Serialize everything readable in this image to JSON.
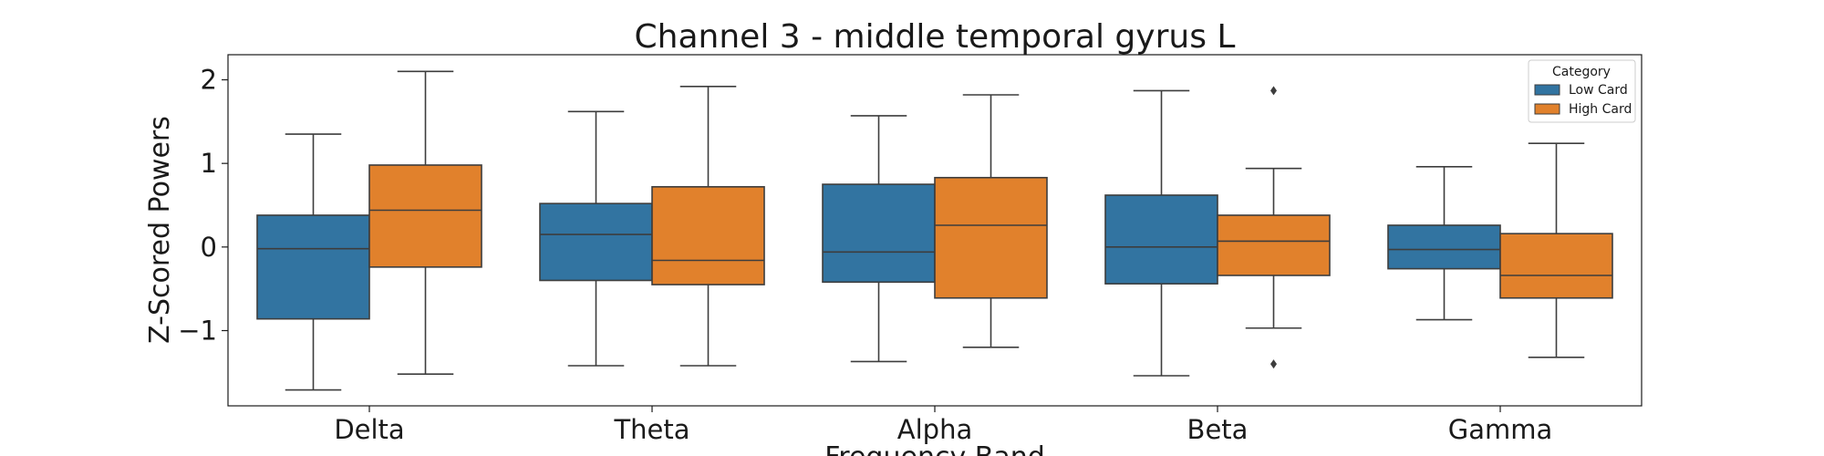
{
  "chart_data": {
    "type": "boxplot",
    "title": "Channel 3 - middle temporal gyrus L",
    "xlabel": "Frequency Band",
    "ylabel": "Z-Scored Powers",
    "categories": [
      "Delta",
      "Theta",
      "Alpha",
      "Beta",
      "Gamma"
    ],
    "ylim": [
      -1.9,
      2.3
    ],
    "yticks": [
      -1,
      0,
      1,
      2
    ],
    "ytick_labels": [
      "−1",
      "0",
      "1",
      "2"
    ],
    "grid": false,
    "legend": {
      "title": "Category",
      "position": "top-right",
      "entries": [
        "Low Card",
        "High Card"
      ]
    },
    "series": [
      {
        "name": "Low Card",
        "color": "#3274a1",
        "boxes": [
          {
            "whislo": -1.71,
            "q1": -0.86,
            "med": -0.02,
            "q3": 0.38,
            "whishi": 1.35,
            "fliers": []
          },
          {
            "whislo": -1.42,
            "q1": -0.4,
            "med": 0.15,
            "q3": 0.52,
            "whishi": 1.62,
            "fliers": []
          },
          {
            "whislo": -1.37,
            "q1": -0.42,
            "med": -0.06,
            "q3": 0.75,
            "whishi": 1.57,
            "fliers": []
          },
          {
            "whislo": -1.54,
            "q1": -0.44,
            "med": 0.0,
            "q3": 0.62,
            "whishi": 1.87,
            "fliers": []
          },
          {
            "whislo": -0.87,
            "q1": -0.26,
            "med": -0.03,
            "q3": 0.26,
            "whishi": 0.96,
            "fliers": []
          }
        ]
      },
      {
        "name": "High Card",
        "color": "#e1812c",
        "boxes": [
          {
            "whislo": -1.52,
            "q1": -0.24,
            "med": 0.44,
            "q3": 0.98,
            "whishi": 2.1,
            "fliers": []
          },
          {
            "whislo": -1.42,
            "q1": -0.45,
            "med": -0.16,
            "q3": 0.72,
            "whishi": 1.92,
            "fliers": []
          },
          {
            "whislo": -1.2,
            "q1": -0.61,
            "med": 0.26,
            "q3": 0.83,
            "whishi": 1.82,
            "fliers": []
          },
          {
            "whislo": -0.97,
            "q1": -0.34,
            "med": 0.07,
            "q3": 0.38,
            "whishi": 0.94,
            "fliers": [
              1.87,
              -1.4
            ]
          },
          {
            "whislo": -1.32,
            "q1": -0.61,
            "med": -0.34,
            "q3": 0.16,
            "whishi": 1.24,
            "fliers": []
          }
        ]
      }
    ]
  }
}
